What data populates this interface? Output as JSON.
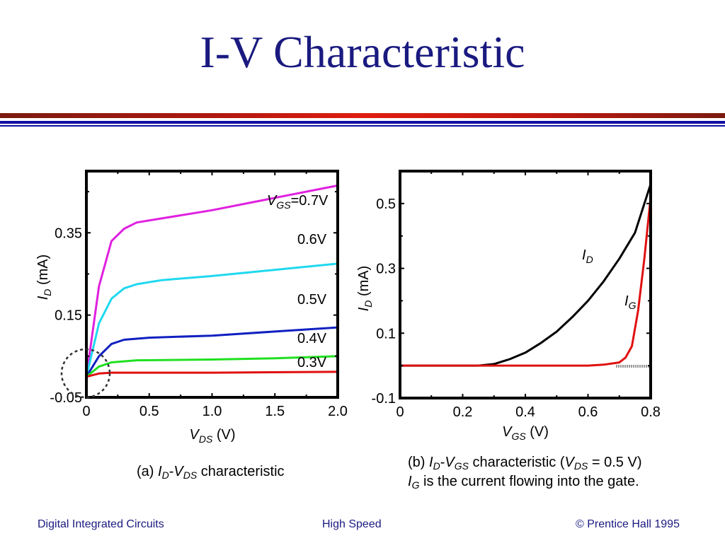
{
  "slide": {
    "title": "I-V Characteristic",
    "colors": {
      "title": "#1a1a80",
      "footer": "#1a1a80",
      "rule_red": "#e01c10",
      "rule_blue": "#1010a0"
    }
  },
  "chart_data": [
    {
      "id": "a",
      "type": "line",
      "xlabel_var": "V",
      "xlabel_sub": "DS",
      "xlabel_unit": " (V)",
      "ylabel_var": "I",
      "ylabel_sub": "D",
      "ylabel_unit": " (mA)",
      "xlim": [
        0,
        2.0
      ],
      "ylim": [
        -0.05,
        0.5
      ],
      "xticks": [
        0,
        0.5,
        1.0,
        1.5,
        2.0
      ],
      "xtick_labels": [
        "0",
        "0.5",
        "1.0",
        "1.5",
        "2.0"
      ],
      "yticks": [
        -0.05,
        0.15,
        0.35
      ],
      "ytick_labels": [
        "-0.05",
        "0.15",
        "0.35"
      ],
      "series": [
        {
          "name": "VGS=0.7V",
          "color": "#e020e0",
          "x": [
            0,
            0.1,
            0.2,
            0.3,
            0.4,
            0.6,
            1.0,
            1.5,
            2.0
          ],
          "y": [
            0,
            0.22,
            0.33,
            0.36,
            0.375,
            0.385,
            0.405,
            0.435,
            0.465
          ]
        },
        {
          "name": "0.6V",
          "color": "#20d8f0",
          "x": [
            0,
            0.1,
            0.2,
            0.3,
            0.4,
            0.6,
            1.0,
            1.5,
            2.0
          ],
          "y": [
            0,
            0.13,
            0.19,
            0.215,
            0.225,
            0.235,
            0.245,
            0.26,
            0.275
          ]
        },
        {
          "name": "0.5V",
          "color": "#1020c0",
          "x": [
            0,
            0.1,
            0.2,
            0.3,
            0.5,
            1.0,
            1.5,
            2.0
          ],
          "y": [
            0,
            0.05,
            0.08,
            0.09,
            0.095,
            0.1,
            0.11,
            0.12
          ]
        },
        {
          "name": "0.4V",
          "color": "#20e020",
          "x": [
            0,
            0.1,
            0.2,
            0.4,
            1.0,
            1.5,
            2.0
          ],
          "y": [
            0,
            0.025,
            0.035,
            0.04,
            0.042,
            0.045,
            0.05
          ]
        },
        {
          "name": "0.3V",
          "color": "#e01010",
          "x": [
            0,
            0.1,
            0.2,
            1.0,
            2.0
          ],
          "y": [
            0,
            0.008,
            0.01,
            0.01,
            0.012
          ]
        }
      ],
      "series_labels": {
        "vgs_var": "V",
        "vgs_sub": "GS",
        "vgs_val": "=0.7V",
        "l06": "0.6V",
        "l05": "0.5V",
        "l04": "0.4V",
        "l03": "0.3V"
      },
      "caption": {
        "prefix": "(a) ",
        "i": "I",
        "i_sub": "D",
        "dash": "-",
        "v": "V",
        "v_sub": "DS",
        "rest": " characteristic"
      }
    },
    {
      "id": "b",
      "type": "line",
      "xlabel_var": "V",
      "xlabel_sub": "GS",
      "xlabel_unit": " (V)",
      "ylabel_var": "I",
      "ylabel_sub": "D",
      "ylabel_unit": " (mA)",
      "xlim": [
        0,
        0.8
      ],
      "ylim": [
        -0.1,
        0.6
      ],
      "xticks": [
        0,
        0.2,
        0.4,
        0.6,
        0.8
      ],
      "xtick_labels": [
        "0",
        "0.2",
        "0.4",
        "0.6",
        "0.8"
      ],
      "yticks": [
        -0.1,
        0.1,
        0.3,
        0.5
      ],
      "ytick_labels": [
        "-0.1",
        "0.1",
        "0.3",
        "0.5"
      ],
      "series": [
        {
          "name": "ID",
          "color": "#000000",
          "x": [
            0,
            0.1,
            0.2,
            0.25,
            0.3,
            0.35,
            0.4,
            0.45,
            0.5,
            0.55,
            0.6,
            0.65,
            0.7,
            0.75,
            0.8
          ],
          "y": [
            0,
            0,
            0,
            0,
            0.005,
            0.02,
            0.04,
            0.07,
            0.105,
            0.15,
            0.2,
            0.26,
            0.33,
            0.41,
            0.56
          ]
        },
        {
          "name": "IG",
          "color": "#e01010",
          "x": [
            0,
            0.2,
            0.4,
            0.6,
            0.65,
            0.7,
            0.72,
            0.74,
            0.76,
            0.78,
            0.8
          ],
          "y": [
            0,
            0,
            0,
            0,
            0.003,
            0.01,
            0.025,
            0.06,
            0.17,
            0.33,
            0.52
          ]
        }
      ],
      "series_labels": {
        "id_var": "I",
        "id_sub": "D",
        "ig_var": "I",
        "ig_sub": "G"
      },
      "caption": {
        "line1_prefix": "(b) ",
        "i": "I",
        "i_sub": "D",
        "dash": "-",
        "v": "V",
        "v_sub": "GS",
        "mid": " characteristic (",
        "vds": "V",
        "vds_sub": "DS",
        "tail": " = 0.5 V)",
        "line2_i": "I",
        "line2_sub": "G",
        "line2_rest": " is the current flowing into the gate."
      }
    }
  ],
  "footer": {
    "left": "Digital Integrated Circuits",
    "center": "High Speed",
    "right": "© Prentice Hall 1995"
  }
}
